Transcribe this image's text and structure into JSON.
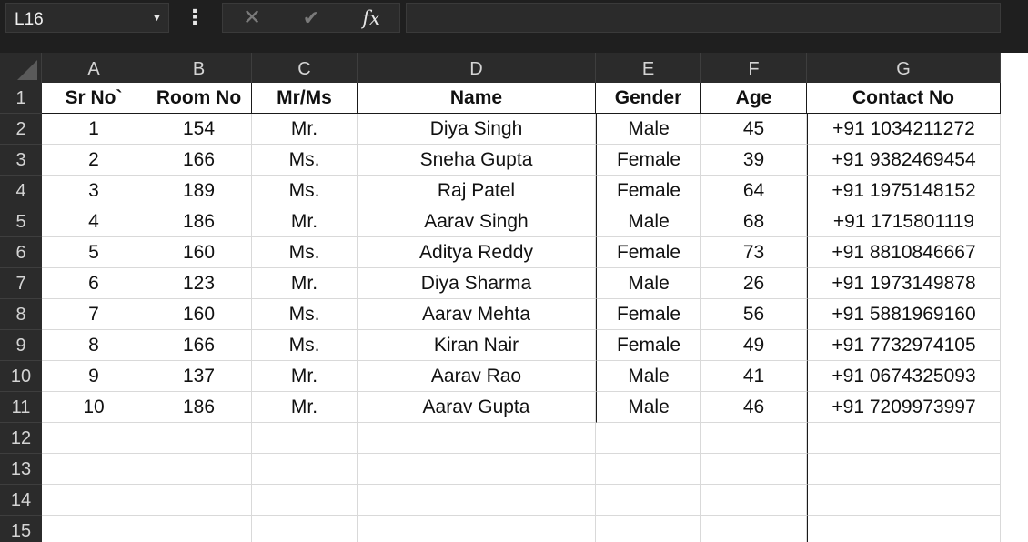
{
  "formula_bar": {
    "name_box": "L16",
    "formula_value": ""
  },
  "columns": [
    "A",
    "B",
    "C",
    "D",
    "E",
    "F",
    "G"
  ],
  "rows": [
    "1",
    "2",
    "3",
    "4",
    "5",
    "6",
    "7",
    "8",
    "9",
    "10",
    "11",
    "12",
    "13",
    "14",
    "15"
  ],
  "table": {
    "headers": [
      "Sr No`",
      "Room No",
      "Mr/Ms",
      "Name",
      "Gender",
      "Age",
      "Contact No"
    ],
    "records": [
      [
        "1",
        "154",
        "Mr.",
        "Diya Singh",
        "Male",
        "45",
        "+91 1034211272"
      ],
      [
        "2",
        "166",
        "Ms.",
        "Sneha Gupta",
        "Female",
        "39",
        "+91 9382469454"
      ],
      [
        "3",
        "189",
        "Ms.",
        "Raj Patel",
        "Female",
        "64",
        "+91 1975148152"
      ],
      [
        "4",
        "186",
        "Mr.",
        "Aarav Singh",
        "Male",
        "68",
        "+91 1715801119"
      ],
      [
        "5",
        "160",
        "Ms.",
        "Aditya Reddy",
        "Female",
        "73",
        "+91 8810846667"
      ],
      [
        "6",
        "123",
        "Mr.",
        "Diya Sharma",
        "Male",
        "26",
        "+91 1973149878"
      ],
      [
        "7",
        "160",
        "Ms.",
        "Aarav Mehta",
        "Female",
        "56",
        "+91 5881969160"
      ],
      [
        "8",
        "166",
        "Ms.",
        "Kiran Nair",
        "Female",
        "49",
        "+91 7732974105"
      ],
      [
        "9",
        "137",
        "Mr.",
        "Aarav Rao",
        "Male",
        "41",
        "+91 0674325093"
      ],
      [
        "10",
        "186",
        "Mr.",
        "Aarav Gupta",
        "Male",
        "46",
        "+91 7209973997"
      ]
    ]
  },
  "icons": {
    "name_box_dropdown": "chevron-down-icon",
    "more": "vertical-ellipsis-icon",
    "cancel": "close-icon",
    "enter": "checkmark-icon",
    "function": "fx-icon"
  },
  "colors": {
    "toolbar_bg": "#1f1f1f",
    "header_bg": "#2b2b2b",
    "header_text": "#d4d4d4",
    "gridline": "#d9d9d9"
  }
}
